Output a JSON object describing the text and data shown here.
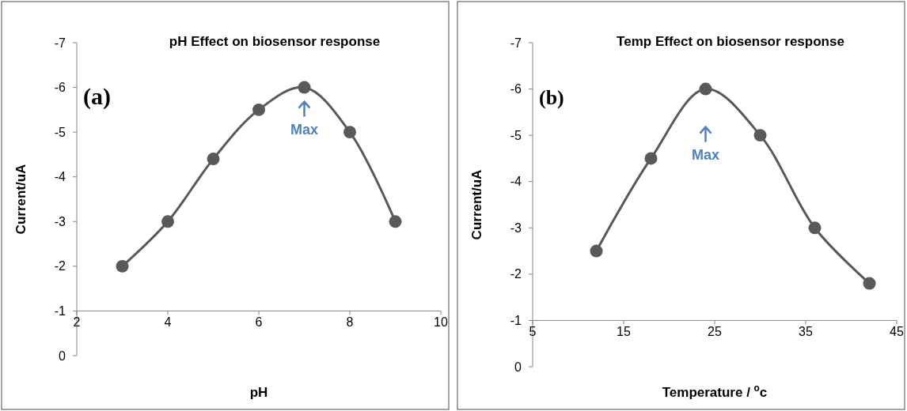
{
  "chart_data": [
    {
      "type": "line",
      "title": "pH Effect on biosensor response",
      "xlabel": "pH",
      "ylabel": "Current/uA",
      "x": [
        3,
        4,
        5,
        6,
        7,
        8,
        9
      ],
      "series": [
        {
          "color": "#595959",
          "values": [
            -2,
            -3,
            -4.4,
            -5.5,
            -6,
            -5,
            -3
          ]
        }
      ],
      "xlim": [
        2,
        10
      ],
      "xticks": [
        2,
        4,
        6,
        8,
        10
      ],
      "ylim": [
        0,
        -7
      ],
      "yticks": [
        0,
        -1,
        -2,
        -3,
        -4,
        -5,
        -6,
        -7
      ],
      "grid": false,
      "marker": "circle",
      "line_style": "solid",
      "annotations": [
        "(a)",
        "Max"
      ]
    },
    {
      "type": "line",
      "title": "Temp Effect on biosensor response",
      "xlabel": "Temperature / $^{o}$c",
      "ylabel": "Current/uA",
      "x": [
        12,
        18,
        24,
        30,
        36,
        42
      ],
      "series": [
        {
          "color": "#595959",
          "values": [
            -2.5,
            -4.5,
            -6,
            -5,
            -3,
            -1.8
          ]
        }
      ],
      "xlim": [
        5,
        45
      ],
      "xticks": [
        5,
        15,
        25,
        35,
        45
      ],
      "ylim": [
        0,
        -7
      ],
      "yticks": [
        0,
        -1,
        -2,
        -3,
        -4,
        -5,
        -6,
        -7
      ],
      "grid": false,
      "marker": "circle",
      "line_style": "solid",
      "annotations": [
        "(b)",
        "Max"
      ]
    }
  ]
}
